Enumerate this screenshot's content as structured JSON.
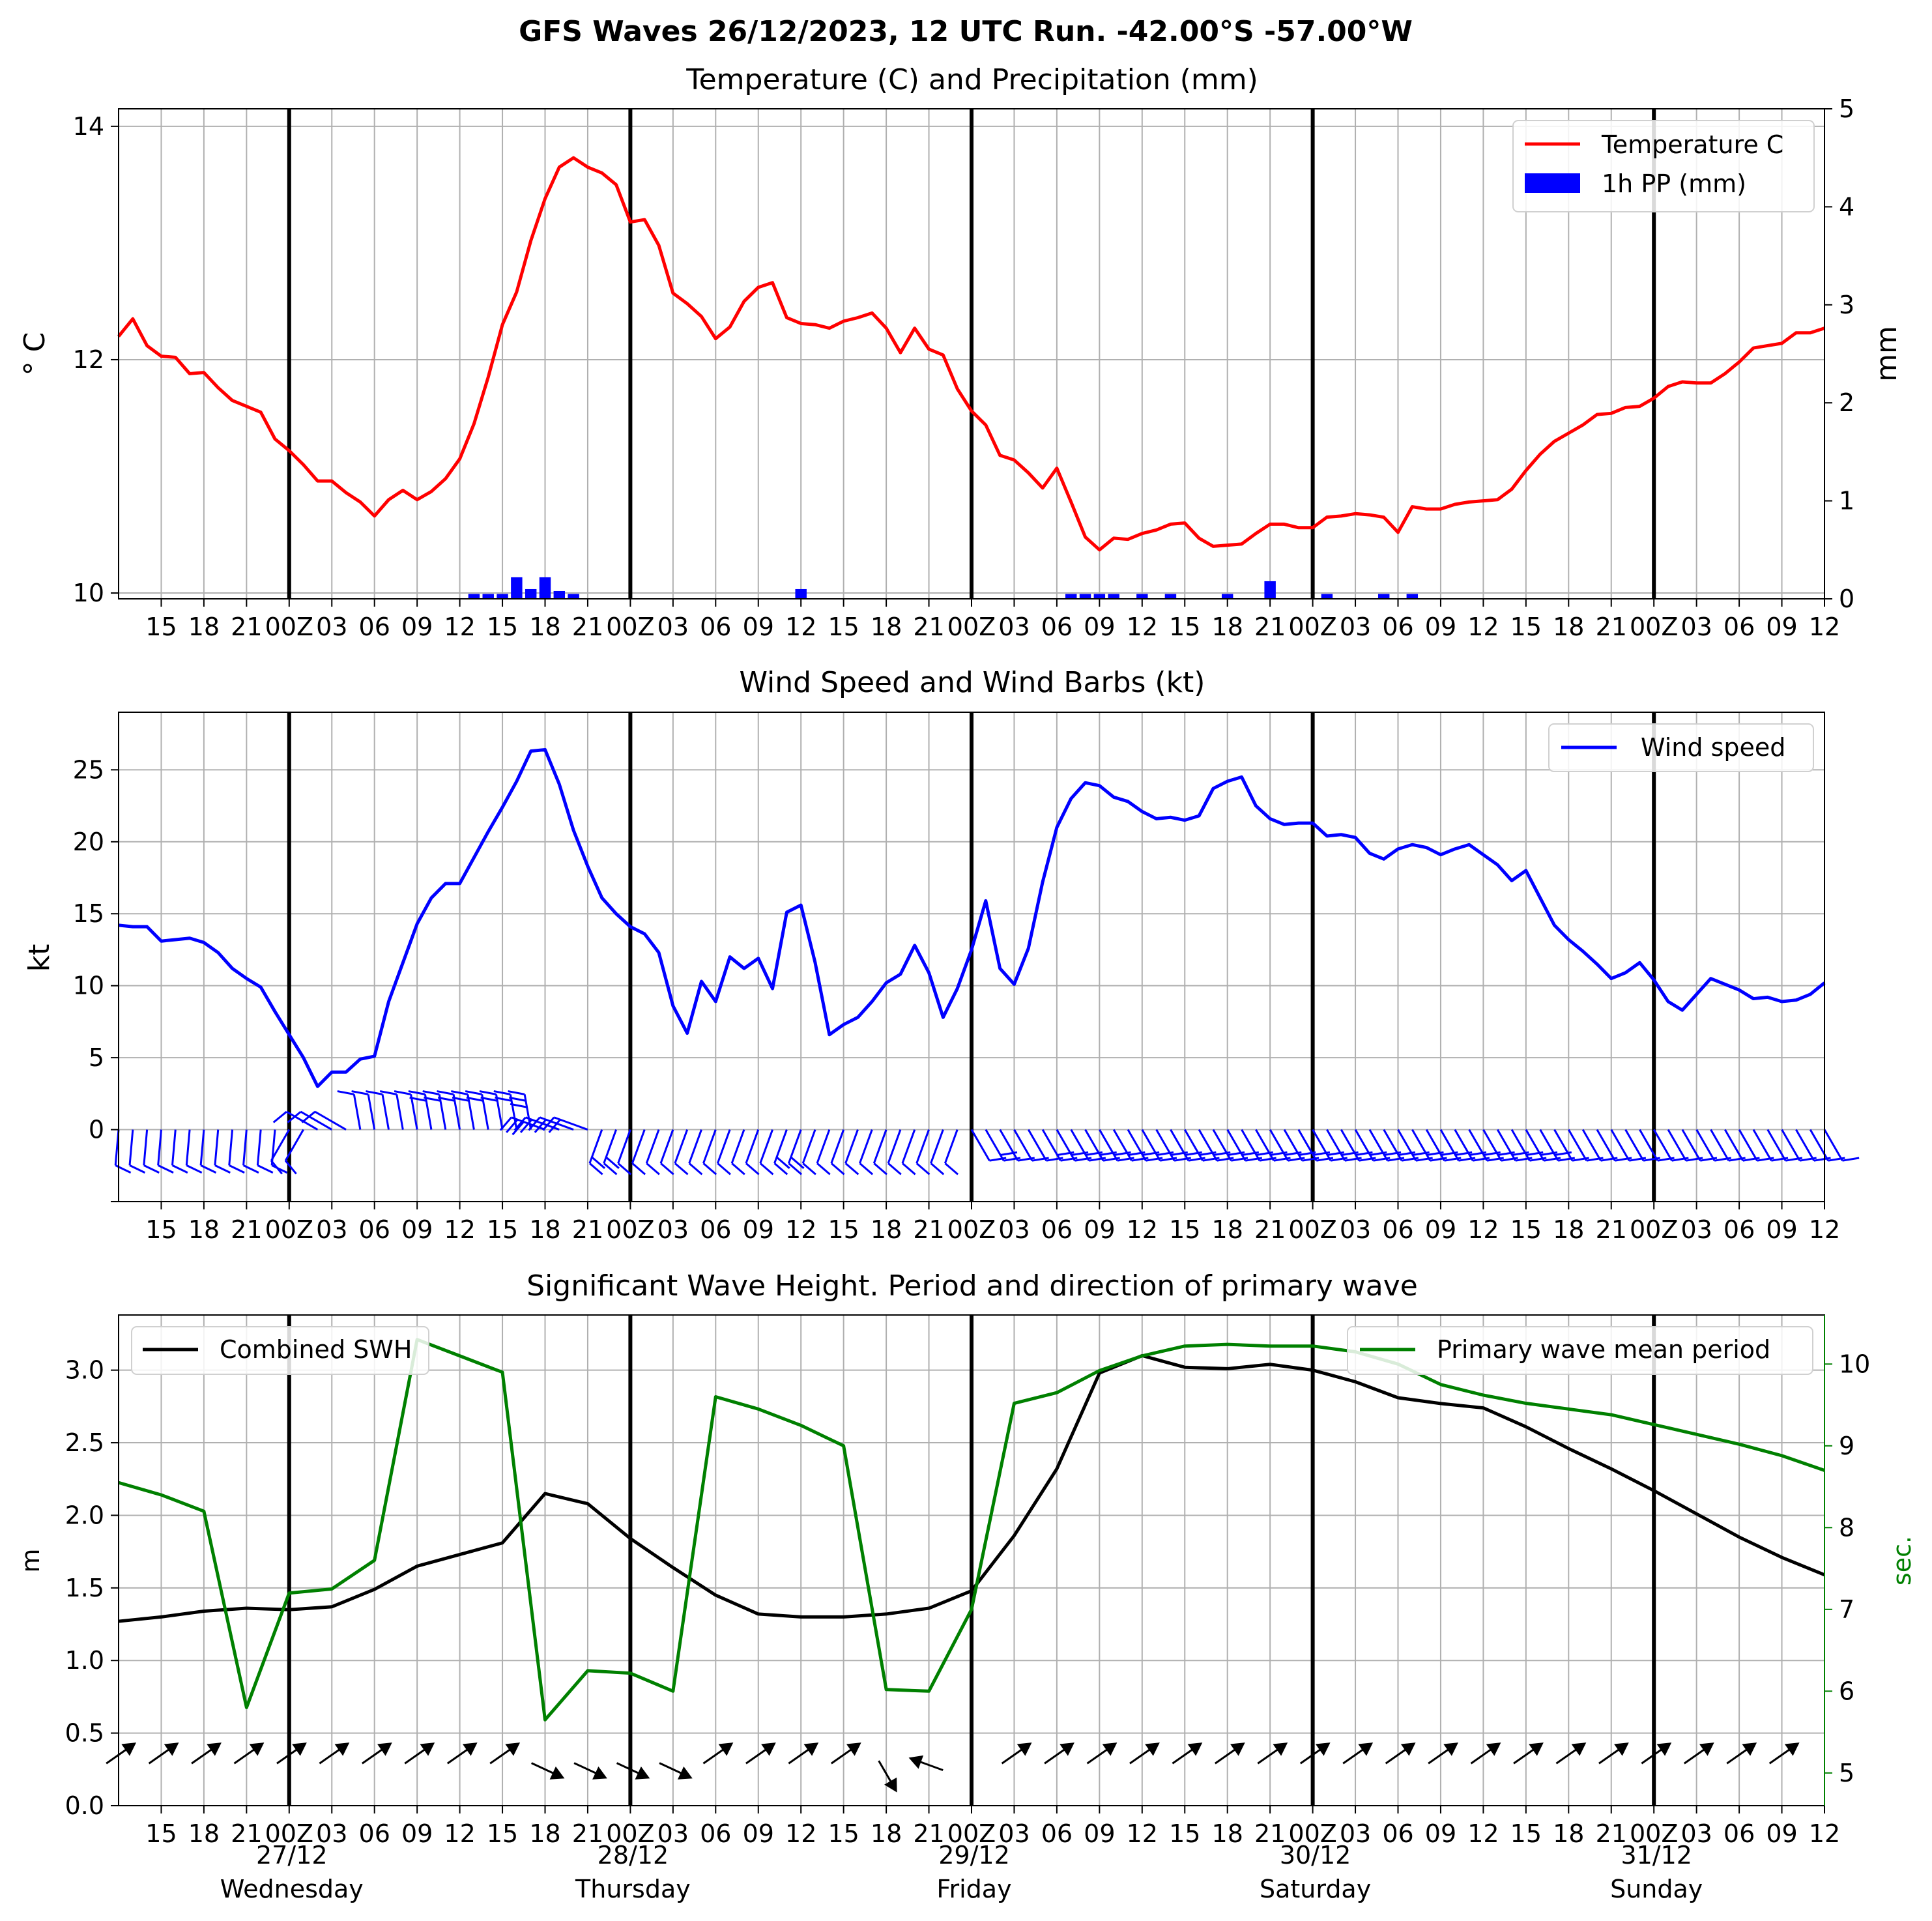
{
  "suptitle": "GFS Waves 26/12/2023, 12 UTC Run. -42.00°S -57.00°W",
  "time_axis": {
    "start_hour": 12,
    "end_hour": 132,
    "tick_labels": [
      "15",
      "18",
      "21",
      "00Z",
      "03",
      "06",
      "09",
      "12",
      "15",
      "18",
      "21",
      "00Z",
      "03",
      "06",
      "09",
      "12",
      "15",
      "18",
      "21",
      "00Z",
      "03",
      "06",
      "09",
      "12",
      "15",
      "18",
      "21",
      "00Z",
      "03",
      "06",
      "09",
      "12",
      "15",
      "18",
      "21",
      "00Z",
      "03",
      "06",
      "09",
      "12"
    ],
    "day_dates": [
      "27/12",
      "28/12",
      "29/12",
      "30/12",
      "31/12"
    ],
    "day_names": [
      "Wednesday",
      "Thursday",
      "Friday",
      "Saturday",
      "Sunday"
    ]
  },
  "chart_data": [
    {
      "type": "line",
      "title": "Temperature (C) and Precipitation (mm)",
      "ylabel": "$^\\circ$C",
      "ylabel_display": "° C",
      "y2label": "mm",
      "ylim": [
        9.95,
        14.15
      ],
      "y2lim": [
        0,
        5
      ],
      "yticks": [
        "10",
        "12",
        "14"
      ],
      "y2ticks": [
        "0",
        "1",
        "2",
        "3",
        "4",
        "5"
      ],
      "legend": [
        "Temperature C",
        "1h PP (mm)"
      ],
      "legend_position": "upper right",
      "temperature": {
        "name": "Temperature C",
        "color": "#ff0000",
        "x": [
          12,
          13,
          14,
          15,
          16,
          17,
          18,
          19,
          20,
          21,
          22,
          23,
          24,
          25,
          26,
          27,
          28,
          29,
          30,
          31,
          32,
          33,
          34,
          35,
          36,
          37,
          38,
          39,
          40,
          41,
          42,
          43,
          44,
          45,
          46,
          47,
          48,
          49,
          50,
          51,
          52,
          53,
          54,
          55,
          56,
          57,
          58,
          59,
          60,
          61,
          62,
          63,
          64,
          65,
          66,
          67,
          68,
          69,
          70,
          71,
          72,
          73,
          74,
          75,
          76,
          77,
          78,
          79,
          80,
          81,
          82,
          83,
          84,
          85,
          86,
          87,
          88,
          89,
          90,
          91,
          92,
          93,
          94,
          95,
          96,
          97,
          98,
          99,
          100,
          101,
          102,
          103,
          104,
          105,
          106,
          107,
          108,
          109,
          110,
          111,
          112,
          113,
          114,
          115,
          116,
          117,
          118,
          119,
          120,
          121,
          122,
          123,
          124,
          125,
          126,
          127,
          128,
          129,
          130,
          131,
          132
        ],
        "values": [
          12.2,
          12.35,
          12.12,
          12.03,
          12.02,
          11.88,
          11.89,
          11.76,
          11.65,
          11.6,
          11.55,
          11.32,
          11.22,
          11.1,
          10.96,
          10.96,
          10.86,
          10.78,
          10.66,
          10.8,
          10.88,
          10.8,
          10.87,
          10.98,
          11.15,
          11.45,
          11.85,
          12.3,
          12.58,
          13.02,
          13.38,
          13.65,
          13.73,
          13.65,
          13.6,
          13.5,
          13.18,
          13.2,
          12.98,
          12.57,
          12.48,
          12.37,
          12.18,
          12.28,
          12.5,
          12.62,
          12.66,
          12.36,
          12.31,
          12.3,
          12.27,
          12.33,
          12.36,
          12.4,
          12.27,
          12.06,
          12.27,
          12.09,
          12.04,
          11.75,
          11.56,
          11.44,
          11.18,
          11.14,
          11.03,
          10.9,
          11.07,
          10.78,
          10.48,
          10.37,
          10.47,
          10.46,
          10.51,
          10.54,
          10.59,
          10.6,
          10.47,
          10.4,
          10.41,
          10.42,
          10.51,
          10.59,
          10.59,
          10.56,
          10.56,
          10.65,
          10.66,
          10.68,
          10.67,
          10.65,
          10.52,
          10.74,
          10.72,
          10.72,
          10.76,
          10.78,
          10.79,
          10.8,
          10.89,
          11.05,
          11.19,
          11.3,
          11.37,
          11.44,
          11.53,
          11.54,
          11.59,
          11.6,
          11.67,
          11.77,
          11.81,
          11.8,
          11.8,
          11.88,
          11.98,
          12.1,
          12.12,
          12.14,
          12.23,
          12.23,
          12.27
        ]
      },
      "precipitation": {
        "name": "1h PP (mm)",
        "color": "#0000ff",
        "x": [
          37,
          38,
          39,
          40,
          41,
          42,
          43,
          44,
          60,
          79,
          80,
          81,
          82,
          84,
          86,
          90,
          93,
          97,
          101,
          103
        ],
        "values": [
          0.05,
          0.05,
          0.05,
          0.22,
          0.1,
          0.22,
          0.08,
          0.05,
          0.1,
          0.05,
          0.05,
          0.05,
          0.05,
          0.05,
          0.05,
          0.05,
          0.18,
          0.05,
          0.05,
          0.05
        ]
      }
    },
    {
      "type": "line",
      "title": "Wind Speed and Wind Barbs (kt)",
      "ylabel": "kt",
      "ylim": [
        -5,
        29
      ],
      "yticks": [
        "0",
        "5",
        "10",
        "15",
        "20",
        "25"
      ],
      "legend": [
        "Wind speed"
      ],
      "legend_position": "upper right",
      "series": [
        {
          "name": "Wind speed",
          "color": "#0000ff",
          "x": [
            12,
            13,
            14,
            15,
            16,
            17,
            18,
            19,
            20,
            21,
            22,
            23,
            24,
            25,
            26,
            27,
            28,
            29,
            30,
            31,
            32,
            33,
            34,
            35,
            36,
            37,
            38,
            39,
            40,
            41,
            42,
            43,
            44,
            45,
            46,
            47,
            48,
            49,
            50,
            51,
            52,
            53,
            54,
            55,
            56,
            57,
            58,
            59,
            60,
            61,
            62,
            63,
            64,
            65,
            66,
            67,
            68,
            69,
            70,
            71,
            72,
            73,
            74,
            75,
            76,
            77,
            78,
            79,
            80,
            81,
            82,
            83,
            84,
            85,
            86,
            87,
            88,
            89,
            90,
            91,
            92,
            93,
            94,
            95,
            96,
            97,
            98,
            99,
            100,
            101,
            102,
            103,
            104,
            105,
            106,
            107,
            108,
            109,
            110,
            111,
            112,
            113,
            114,
            115,
            116,
            117,
            118,
            119,
            120,
            121,
            122,
            123,
            124,
            125,
            126,
            127,
            128,
            129,
            130,
            131,
            132
          ],
          "values": [
            14.2,
            14.1,
            14.1,
            13.1,
            13.2,
            13.3,
            13.0,
            12.3,
            11.2,
            10.5,
            9.9,
            8.2,
            6.6,
            5.0,
            3.0,
            4.0,
            4.0,
            4.9,
            5.1,
            8.9,
            11.6,
            14.3,
            16.1,
            17.1,
            17.1,
            18.9,
            20.7,
            22.4,
            24.2,
            26.3,
            26.4,
            24.0,
            20.8,
            18.3,
            16.1,
            15.0,
            14.1,
            13.6,
            12.3,
            8.6,
            6.7,
            10.3,
            8.9,
            12.0,
            11.2,
            11.9,
            9.8,
            15.1,
            15.6,
            11.6,
            6.6,
            7.3,
            7.8,
            8.9,
            10.2,
            10.8,
            12.8,
            10.9,
            7.8,
            9.8,
            12.5,
            15.9,
            11.2,
            10.1,
            12.6,
            17.2,
            21.0,
            23.0,
            24.1,
            23.9,
            23.1,
            22.8,
            22.1,
            21.6,
            21.7,
            21.5,
            21.8,
            23.7,
            24.2,
            24.5,
            22.5,
            21.6,
            21.2,
            21.3,
            21.3,
            20.4,
            20.5,
            20.3,
            19.2,
            18.8,
            19.5,
            19.8,
            19.6,
            19.1,
            19.5,
            19.8,
            19.1,
            18.4,
            17.3,
            18.0,
            16.1,
            14.2,
            13.2,
            12.4,
            11.5,
            10.5,
            10.9,
            11.6,
            10.4,
            8.9,
            8.3,
            9.4,
            10.5,
            10.1,
            9.7,
            9.1,
            9.2,
            8.9,
            9.0,
            9.4,
            10.2
          ]
        }
      ],
      "barbs": "wind barbs drawn at the 0 kt line for each hour"
    },
    {
      "type": "line",
      "title": "Significant Wave Height. Period and direction of primary wave",
      "ylabel": "m",
      "y2label": "sec.",
      "ylim": [
        0,
        3.38
      ],
      "y2lim": [
        4.6,
        10.6
      ],
      "yticks": [
        "0.0",
        "0.5",
        "1.0",
        "1.5",
        "2.0",
        "2.5",
        "3.0"
      ],
      "y2ticks": [
        "5",
        "6",
        "7",
        "8",
        "9",
        "10"
      ],
      "legend": [
        "Combined SWH",
        "Primary wave mean period"
      ],
      "legend_position": "upper left / upper right",
      "series": [
        {
          "name": "Combined SWH",
          "color": "#000000",
          "x": [
            12,
            15,
            18,
            21,
            24,
            27,
            30,
            33,
            36,
            39,
            42,
            45,
            48,
            51,
            54,
            57,
            60,
            63,
            66,
            69,
            72,
            75,
            78,
            81,
            84,
            87,
            90,
            93,
            96,
            99,
            102,
            105,
            108,
            111,
            114,
            117,
            120,
            123,
            126,
            129,
            132
          ],
          "values": [
            1.27,
            1.3,
            1.34,
            1.36,
            1.35,
            1.37,
            1.49,
            1.65,
            1.73,
            1.81,
            2.15,
            2.08,
            1.84,
            1.64,
            1.45,
            1.32,
            1.3,
            1.3,
            1.32,
            1.36,
            1.48,
            1.86,
            2.32,
            2.98,
            3.1,
            3.02,
            3.01,
            3.04,
            3.0,
            2.92,
            2.81,
            2.77,
            2.74,
            2.61,
            2.46,
            2.32,
            2.17,
            2.01,
            1.85,
            1.71,
            1.59
          ]
        },
        {
          "name": "Primary wave mean period",
          "color": "#008000",
          "x": [
            12,
            15,
            18,
            21,
            24,
            27,
            30,
            33,
            36,
            39,
            42,
            45,
            48,
            51,
            54,
            57,
            60,
            63,
            66,
            69,
            72,
            75,
            78,
            81,
            84,
            87,
            90,
            93,
            96,
            99,
            102,
            105,
            108,
            111,
            114,
            117,
            120,
            123,
            126,
            129,
            132
          ],
          "values": [
            8.55,
            8.4,
            8.2,
            5.8,
            7.2,
            7.25,
            7.6,
            10.3,
            10.1,
            9.9,
            5.65,
            6.25,
            6.22,
            6.0,
            9.6,
            9.45,
            9.25,
            9.0,
            6.02,
            6.0,
            7.0,
            9.52,
            9.65,
            9.92,
            10.1,
            10.22,
            10.24,
            10.22,
            10.22,
            10.15,
            10.0,
            9.75,
            9.62,
            9.52,
            9.45,
            9.38,
            9.26,
            9.14,
            9.02,
            8.88,
            8.7
          ]
        }
      ],
      "arrows": "primary wave direction arrows every 3 hours"
    }
  ]
}
